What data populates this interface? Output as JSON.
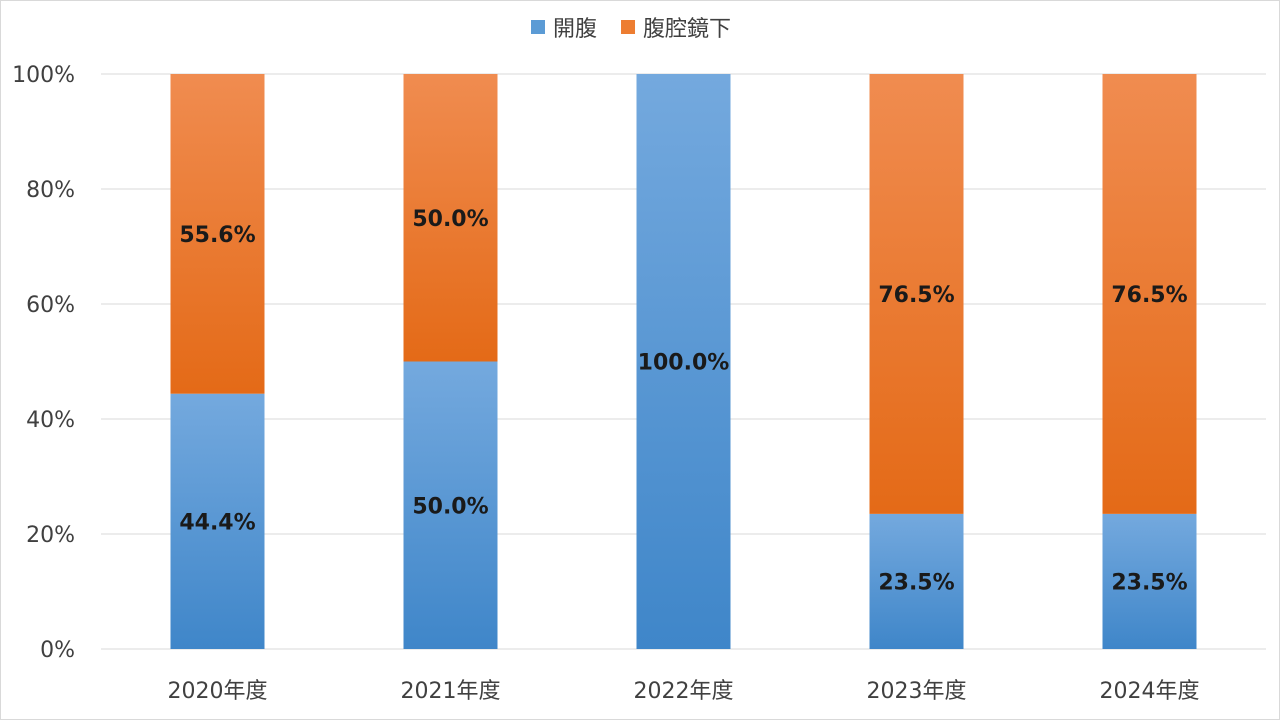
{
  "chart_data": {
    "type": "bar",
    "stacked": "percent",
    "categories": [
      "2020年度",
      "2021年度",
      "2022年度",
      "2023年度",
      "2024年度"
    ],
    "series": [
      {
        "name": "開腹",
        "values": [
          44.4,
          50.0,
          100.0,
          23.5,
          23.5
        ],
        "labels": [
          "44.4%",
          "50.0%",
          "100.0%",
          "23.5%",
          "23.5%"
        ],
        "color": "#5B9BD5"
      },
      {
        "name": "腹腔鏡下",
        "values": [
          55.6,
          50.0,
          0,
          76.5,
          76.5
        ],
        "labels": [
          "55.6%",
          "50.0%",
          "",
          "76.5%",
          "76.5%"
        ],
        "color": "#ED7D31"
      }
    ],
    "ylim": [
      0,
      100
    ],
    "yticks": [
      0,
      20,
      40,
      60,
      80,
      100
    ],
    "ytick_labels": [
      "0%",
      "20%",
      "40%",
      "60%",
      "80%",
      "100%"
    ],
    "grid": true,
    "legend_position": "top",
    "title": "",
    "xlabel": "",
    "ylabel": ""
  }
}
